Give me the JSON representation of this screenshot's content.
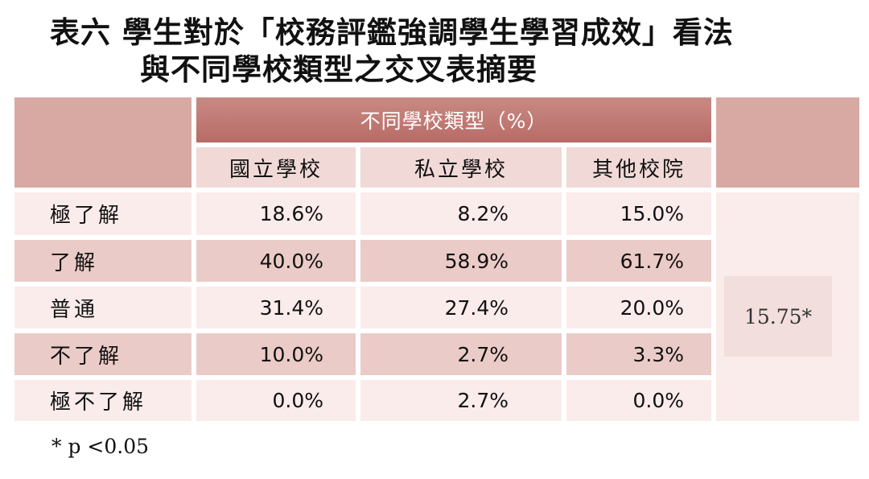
{
  "title": {
    "line1": "表六 學生對於「校務評鑑強調學生學習成效」看法",
    "line2": "與不同學校類型之交叉表摘要"
  },
  "footnote": "* p <0.05",
  "chart_data": {
    "type": "table",
    "title": "表六 學生對於「校務評鑑強調學生學習成效」看法與不同學校類型之交叉表摘要",
    "group_header": "不同學校類型（%）",
    "columns": [
      "國立學校",
      "私立學校",
      "其他校院"
    ],
    "rows": [
      {
        "label": "極了解",
        "values": [
          "18.6%",
          "8.2%",
          "15.0%"
        ]
      },
      {
        "label": "了解",
        "values": [
          "40.0%",
          "58.9%",
          "61.7%"
        ]
      },
      {
        "label": "普通",
        "values": [
          "31.4%",
          "27.4%",
          "20.0%"
        ]
      },
      {
        "label": "不了解",
        "values": [
          "10.0%",
          "2.7%",
          "3.3%"
        ]
      },
      {
        "label": "極不了解",
        "values": [
          "0.0%",
          "2.7%",
          "0.0%"
        ]
      }
    ],
    "chi_square": "15.75*",
    "colors": {
      "header": "#d8a9a3",
      "group_header": "#b86b66",
      "subheader": "#f0d9d7",
      "row_light": "#faeceb",
      "row_dark": "#ebcbc7"
    }
  }
}
